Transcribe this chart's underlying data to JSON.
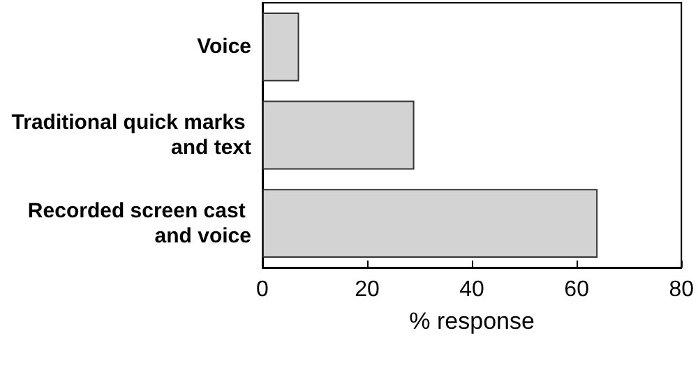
{
  "chart_data": {
    "type": "bar",
    "orientation": "horizontal",
    "xlabel": "% response",
    "categories": [
      "Voice",
      "Traditional quick marks and text",
      "Recorded screen cast and voice"
    ],
    "values": [
      7,
      29,
      64
    ],
    "color": "#d3d3d3",
    "xlim": [
      0,
      80
    ],
    "xticks": [
      0,
      20,
      40,
      60,
      80
    ],
    "grid": false
  }
}
